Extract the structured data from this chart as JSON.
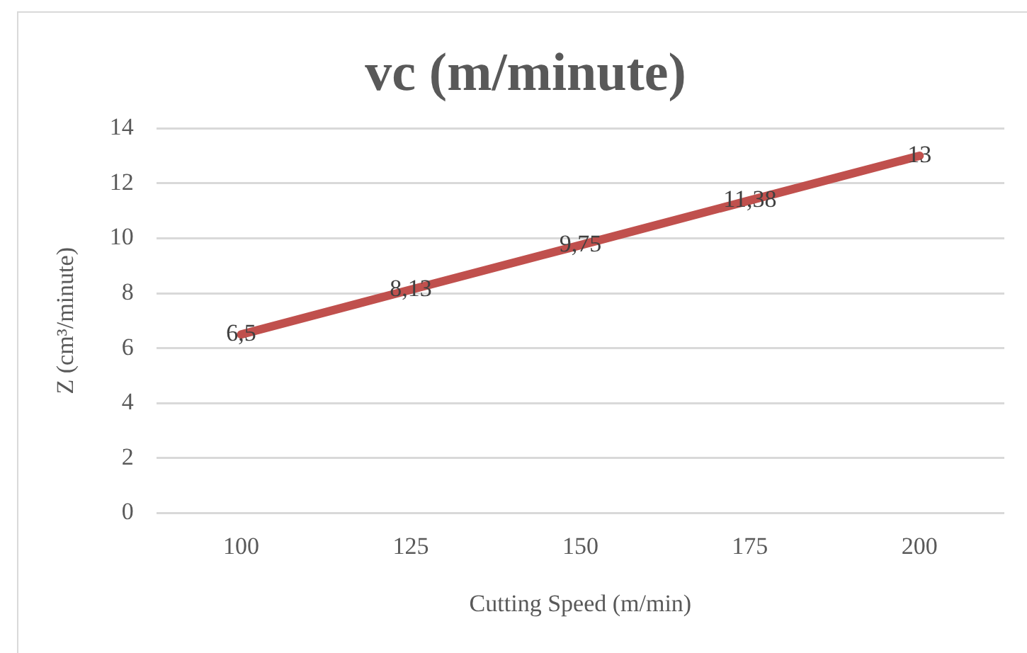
{
  "chart_data": {
    "type": "line",
    "title": "vc (m/minute)",
    "xlabel": "Cutting Speed (m/min)",
    "ylabel": "Z (cm³/minute)",
    "categories": [
      "100",
      "125",
      "150",
      "175",
      "200"
    ],
    "series": [
      {
        "color": "#c0504d",
        "values": [
          6.5,
          8.13,
          9.75,
          11.38,
          13
        ],
        "value_labels": [
          "6,5",
          "8,13",
          "9,75",
          "11,38",
          "13"
        ]
      }
    ],
    "ylim": [
      0,
      14
    ],
    "yticks": [
      0,
      2,
      4,
      6,
      8,
      10,
      12,
      14
    ],
    "grid": "y",
    "legend": false,
    "marker": "none"
  }
}
